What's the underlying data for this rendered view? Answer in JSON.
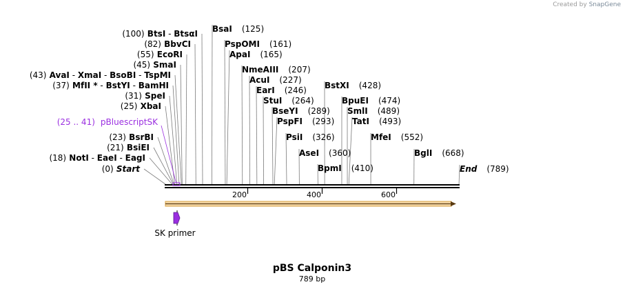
{
  "watermark": {
    "prefix": "Created by",
    "brand": "SnapGene"
  },
  "title": "pBS Calponin3",
  "length_label": "789 bp",
  "sequence_length": 789,
  "axis_ticks": [
    200,
    400,
    600
  ],
  "colors": {
    "feature": "#9a2fe0",
    "arrow_fill": "#f5d9a8",
    "arrow_edge": "#d8a040",
    "arrow_line": "#5a3a10"
  },
  "sites": [
    {
      "parts": [
        {
          "t": "BsaI",
          "b": true
        }
      ],
      "pos": "(125)",
      "bp": 125
    },
    {
      "parts": [
        {
          "t": "(100)",
          "b": false
        },
        {
          "t": " BtsI",
          "b": true
        },
        {
          "t": " - ",
          "b": false
        },
        {
          "t": "BtsαI",
          "b": true
        }
      ],
      "bp": 100
    },
    {
      "parts": [
        {
          "t": "PspOMI",
          "b": true
        }
      ],
      "pos": "(161)",
      "bp": 161
    },
    {
      "parts": [
        {
          "t": "(82)",
          "b": false
        },
        {
          "t": " BbvCI",
          "b": true
        }
      ],
      "bp": 82
    },
    {
      "parts": [
        {
          "t": "ApaI",
          "b": true
        }
      ],
      "pos": "(165)",
      "bp": 165
    },
    {
      "parts": [
        {
          "t": "(55)",
          "b": false
        },
        {
          "t": " EcoRI",
          "b": true
        }
      ],
      "bp": 55
    },
    {
      "parts": [
        {
          "t": "(45)",
          "b": false
        },
        {
          "t": " SmaI",
          "b": true
        }
      ],
      "bp": 45
    },
    {
      "parts": [
        {
          "t": "NmeAIII",
          "b": true
        }
      ],
      "pos": "(207)",
      "bp": 207
    },
    {
      "parts": [
        {
          "t": "(43)",
          "b": false
        },
        {
          "t": " AvaI",
          "b": true
        },
        {
          "t": " - ",
          "b": false
        },
        {
          "t": "XmaI",
          "b": true
        },
        {
          "t": " - ",
          "b": false
        },
        {
          "t": "BsoBI",
          "b": true
        },
        {
          "t": " - ",
          "b": false
        },
        {
          "t": "TspMI",
          "b": true
        }
      ],
      "bp": 43
    },
    {
      "parts": [
        {
          "t": "AcuI",
          "b": true
        }
      ],
      "pos": "(227)",
      "bp": 227
    },
    {
      "parts": [
        {
          "t": "(37)",
          "b": false
        },
        {
          "t": " MfII *",
          "b": true
        },
        {
          "t": " - ",
          "b": false
        },
        {
          "t": "BstYI",
          "b": true
        },
        {
          "t": " - ",
          "b": false
        },
        {
          "t": "BamHI",
          "b": true
        }
      ],
      "bp": 37
    },
    {
      "parts": [
        {
          "t": "BstXI",
          "b": true
        }
      ],
      "pos": "(428)",
      "bp": 428
    },
    {
      "parts": [
        {
          "t": "EarI",
          "b": true
        }
      ],
      "pos": "(246)",
      "bp": 246
    },
    {
      "parts": [
        {
          "t": "(31)",
          "b": false
        },
        {
          "t": " SpeI",
          "b": true
        }
      ],
      "bp": 31
    },
    {
      "parts": [
        {
          "t": "StuI",
          "b": true
        }
      ],
      "pos": "(264)",
      "bp": 264
    },
    {
      "parts": [
        {
          "t": "BpuEI",
          "b": true
        }
      ],
      "pos": "(474)",
      "bp": 474
    },
    {
      "parts": [
        {
          "t": "(25)",
          "b": false
        },
        {
          "t": " XbaI",
          "b": true
        }
      ],
      "bp": 25
    },
    {
      "parts": [
        {
          "t": "BseYI",
          "b": true
        }
      ],
      "pos": "(289)",
      "bp": 289
    },
    {
      "parts": [
        {
          "t": "SmlI",
          "b": true
        }
      ],
      "pos": "(489)",
      "bp": 489
    },
    {
      "parts": [
        {
          "t": "PspFI",
          "b": true
        }
      ],
      "pos": "(293)",
      "bp": 293
    },
    {
      "parts": [
        {
          "t": "TatI",
          "b": true
        }
      ],
      "pos": "(493)",
      "bp": 493
    },
    {
      "parts": [
        {
          "t": "(23)",
          "b": false
        },
        {
          "t": " BsrBI",
          "b": true
        }
      ],
      "bp": 23
    },
    {
      "parts": [
        {
          "t": "PsiI",
          "b": true
        }
      ],
      "pos": "(326)",
      "bp": 326
    },
    {
      "parts": [
        {
          "t": "MfeI",
          "b": true
        }
      ],
      "pos": "(552)",
      "bp": 552
    },
    {
      "parts": [
        {
          "t": "(21)",
          "b": false
        },
        {
          "t": " BsiEI",
          "b": true
        }
      ],
      "bp": 21
    },
    {
      "parts": [
        {
          "t": "AseI",
          "b": true
        }
      ],
      "pos": "(360)",
      "bp": 360
    },
    {
      "parts": [
        {
          "t": "BglI",
          "b": true
        }
      ],
      "pos": "(668)",
      "bp": 668
    },
    {
      "parts": [
        {
          "t": "(18)",
          "b": false
        },
        {
          "t": " NotI",
          "b": true
        },
        {
          "t": " - ",
          "b": false
        },
        {
          "t": "EaeI",
          "b": true
        },
        {
          "t": " - ",
          "b": false
        },
        {
          "t": "EagI",
          "b": true
        }
      ],
      "bp": 18
    },
    {
      "parts": [
        {
          "t": "BpmI",
          "b": true
        }
      ],
      "pos": "(410)",
      "bp": 410
    },
    {
      "parts": [
        {
          "t": "(0)",
          "b": false
        },
        {
          "t": " Start",
          "b": true,
          "i": true
        }
      ],
      "bp": 0
    },
    {
      "parts": [
        {
          "t": "End",
          "b": true,
          "i": true
        }
      ],
      "pos": "(789)",
      "bp": 789
    }
  ],
  "feature_label": {
    "range": "(25 .. 41)",
    "name": "pBluescriptSK",
    "start_bp": 25,
    "end_bp": 41
  },
  "primer": {
    "name": "SK primer",
    "bp": 25
  }
}
